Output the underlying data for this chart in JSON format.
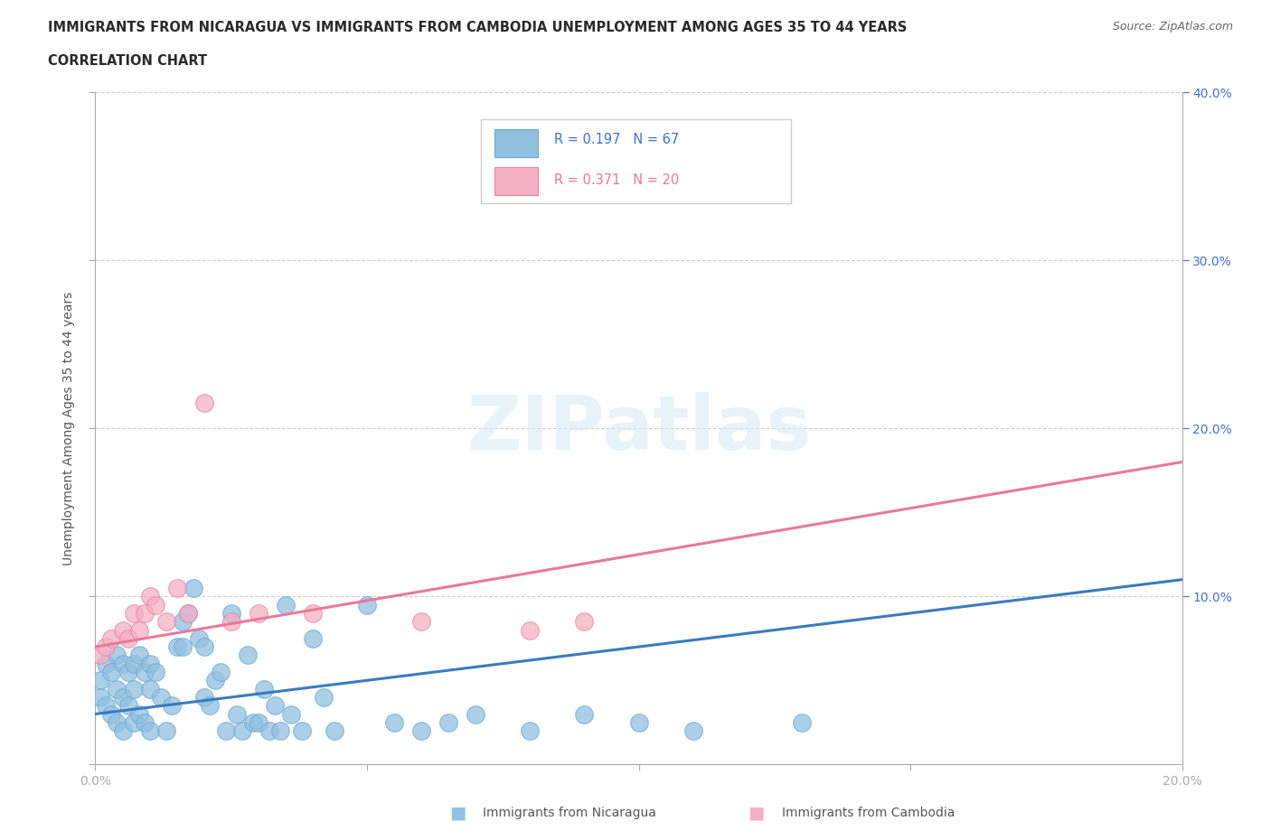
{
  "title_line1": "IMMIGRANTS FROM NICARAGUA VS IMMIGRANTS FROM CAMBODIA UNEMPLOYMENT AMONG AGES 35 TO 44 YEARS",
  "title_line2": "CORRELATION CHART",
  "source_text": "Source: ZipAtlas.com",
  "ylabel": "Unemployment Among Ages 35 to 44 years",
  "xlim": [
    0.0,
    0.2
  ],
  "ylim": [
    0.0,
    0.4
  ],
  "nicaragua_color": "#92c0e0",
  "nicaragua_edge": "#6aaad4",
  "cambodia_color": "#f5b0c5",
  "cambodia_edge": "#e8829e",
  "line_nicaragua_color": "#3a7bbf",
  "line_cambodia_color": "#e8799a",
  "nicaragua_x": [
    0.001,
    0.001,
    0.002,
    0.002,
    0.003,
    0.003,
    0.004,
    0.004,
    0.004,
    0.005,
    0.005,
    0.005,
    0.006,
    0.006,
    0.007,
    0.007,
    0.007,
    0.008,
    0.008,
    0.009,
    0.009,
    0.01,
    0.01,
    0.01,
    0.011,
    0.012,
    0.013,
    0.014,
    0.015,
    0.016,
    0.016,
    0.017,
    0.018,
    0.019,
    0.02,
    0.02,
    0.021,
    0.022,
    0.023,
    0.024,
    0.025,
    0.026,
    0.027,
    0.028,
    0.029,
    0.03,
    0.031,
    0.032,
    0.033,
    0.034,
    0.035,
    0.036,
    0.038,
    0.04,
    0.042,
    0.044,
    0.05,
    0.055,
    0.06,
    0.065,
    0.07,
    0.08,
    0.09,
    0.1,
    0.11,
    0.13
  ],
  "nicaragua_y": [
    0.05,
    0.04,
    0.06,
    0.035,
    0.055,
    0.03,
    0.065,
    0.045,
    0.025,
    0.06,
    0.04,
    0.02,
    0.055,
    0.035,
    0.06,
    0.045,
    0.025,
    0.065,
    0.03,
    0.055,
    0.025,
    0.06,
    0.045,
    0.02,
    0.055,
    0.04,
    0.02,
    0.035,
    0.07,
    0.085,
    0.07,
    0.09,
    0.105,
    0.075,
    0.07,
    0.04,
    0.035,
    0.05,
    0.055,
    0.02,
    0.09,
    0.03,
    0.02,
    0.065,
    0.025,
    0.025,
    0.045,
    0.02,
    0.035,
    0.02,
    0.095,
    0.03,
    0.02,
    0.075,
    0.04,
    0.02,
    0.095,
    0.025,
    0.02,
    0.025,
    0.03,
    0.02,
    0.03,
    0.025,
    0.02,
    0.025
  ],
  "cambodia_x": [
    0.001,
    0.002,
    0.003,
    0.005,
    0.006,
    0.007,
    0.008,
    0.009,
    0.01,
    0.011,
    0.013,
    0.015,
    0.017,
    0.02,
    0.025,
    0.03,
    0.04,
    0.06,
    0.08,
    0.09
  ],
  "cambodia_y": [
    0.065,
    0.07,
    0.075,
    0.08,
    0.075,
    0.09,
    0.08,
    0.09,
    0.1,
    0.095,
    0.085,
    0.105,
    0.09,
    0.215,
    0.085,
    0.09,
    0.09,
    0.085,
    0.08,
    0.085
  ],
  "nic_line_x0": 0.0,
  "nic_line_y0": 0.03,
  "nic_line_x1": 0.2,
  "nic_line_y1": 0.11,
  "cam_line_x0": 0.0,
  "cam_line_y0": 0.07,
  "cam_line_x1": 0.2,
  "cam_line_y1": 0.18
}
